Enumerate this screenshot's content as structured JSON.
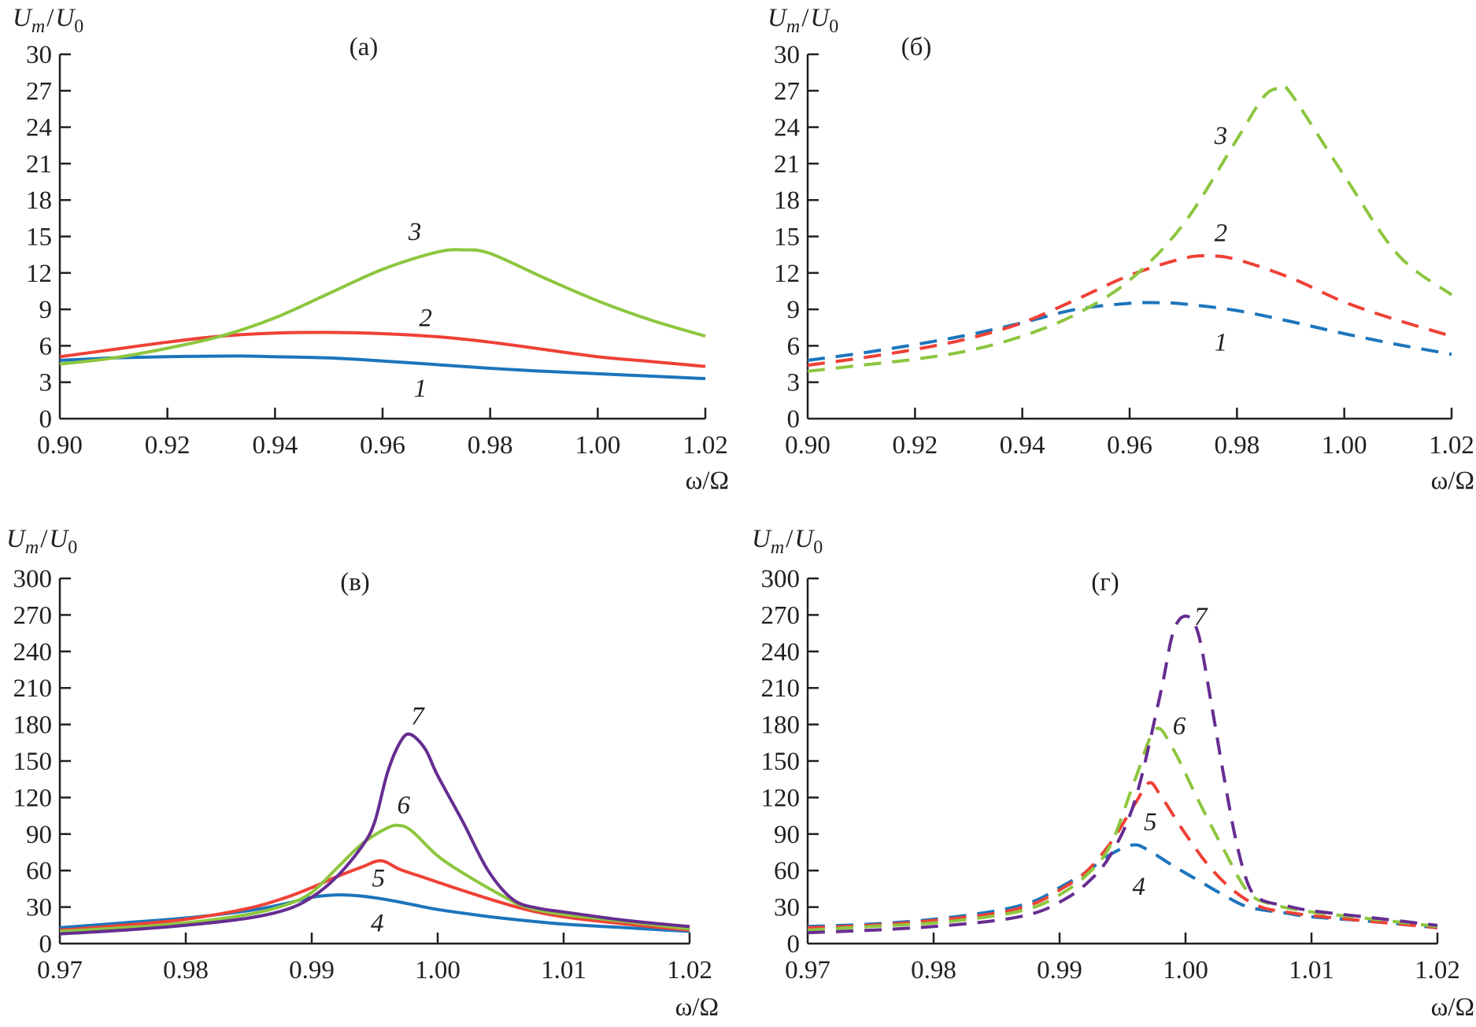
{
  "chart_data": [
    {
      "type": "line",
      "panel_label": "(а)",
      "ylabel": "U_m/U_0",
      "xlabel": "ω/Ω",
      "xlim": [
        0.9,
        1.02
      ],
      "ylim": [
        0,
        30
      ],
      "xticks": [
        "0.90",
        "0.92",
        "0.94",
        "0.96",
        "0.98",
        "1.00",
        "1.02"
      ],
      "yticks": [
        "0",
        "3",
        "6",
        "9",
        "12",
        "15",
        "18",
        "21",
        "24",
        "27",
        "30"
      ],
      "line_style": "solid",
      "grid": false,
      "series": [
        {
          "name": "1",
          "color": "#1c75bc",
          "x": [
            0.9,
            0.91,
            0.92,
            0.93,
            0.935,
            0.94,
            0.95,
            0.96,
            0.97,
            0.98,
            0.99,
            1.0,
            1.01,
            1.02
          ],
          "y": [
            4.8,
            5.0,
            5.1,
            5.15,
            5.15,
            5.1,
            5.0,
            4.75,
            4.45,
            4.15,
            3.9,
            3.7,
            3.5,
            3.3
          ],
          "label_pos": [
            0.967,
            1.8
          ]
        },
        {
          "name": "2",
          "color": "#ef4136",
          "x": [
            0.9,
            0.91,
            0.92,
            0.93,
            0.94,
            0.95,
            0.96,
            0.97,
            0.98,
            0.99,
            1.0,
            1.01,
            1.02
          ],
          "y": [
            5.1,
            5.7,
            6.3,
            6.8,
            7.05,
            7.1,
            7.0,
            6.75,
            6.3,
            5.7,
            5.1,
            4.7,
            4.3
          ],
          "label_pos": [
            0.968,
            7.6
          ]
        },
        {
          "name": "3",
          "color": "#8dc63f",
          "x": [
            0.9,
            0.91,
            0.92,
            0.93,
            0.94,
            0.95,
            0.96,
            0.97,
            0.975,
            0.98,
            0.99,
            1.0,
            1.01,
            1.02
          ],
          "y": [
            4.5,
            5.0,
            5.8,
            6.8,
            8.3,
            10.3,
            12.3,
            13.7,
            13.9,
            13.6,
            11.6,
            9.7,
            8.1,
            6.8
          ],
          "label_pos": [
            0.966,
            14.7
          ]
        }
      ]
    },
    {
      "type": "line",
      "panel_label": "(б)",
      "ylabel": "U_m/U_0",
      "xlabel": "ω/Ω",
      "xlim": [
        0.9,
        1.02
      ],
      "ylim": [
        0,
        30
      ],
      "xticks": [
        "0.90",
        "0.92",
        "0.94",
        "0.96",
        "0.98",
        "1.00",
        "1.02"
      ],
      "yticks": [
        "0",
        "3",
        "6",
        "9",
        "12",
        "15",
        "18",
        "21",
        "24",
        "27",
        "30"
      ],
      "line_style": "dashed",
      "grid": false,
      "series": [
        {
          "name": "1",
          "color": "#1c75bc",
          "x": [
            0.9,
            0.91,
            0.92,
            0.93,
            0.94,
            0.95,
            0.96,
            0.965,
            0.97,
            0.98,
            0.99,
            1.0,
            1.01,
            1.02
          ],
          "y": [
            4.8,
            5.4,
            6.1,
            6.9,
            7.9,
            9.0,
            9.5,
            9.55,
            9.45,
            8.9,
            8.0,
            7.0,
            6.1,
            5.3
          ],
          "label_pos": [
            0.977,
            5.6
          ]
        },
        {
          "name": "2",
          "color": "#ef4136",
          "x": [
            0.9,
            0.91,
            0.92,
            0.93,
            0.94,
            0.95,
            0.96,
            0.97,
            0.975,
            0.98,
            0.99,
            1.0,
            1.01,
            1.02
          ],
          "y": [
            4.4,
            5.0,
            5.7,
            6.6,
            7.9,
            9.8,
            11.8,
            13.2,
            13.4,
            13.1,
            11.6,
            9.6,
            8.1,
            6.8
          ],
          "label_pos": [
            0.977,
            14.6
          ]
        },
        {
          "name": "3",
          "color": "#8dc63f",
          "x": [
            0.9,
            0.91,
            0.92,
            0.93,
            0.94,
            0.95,
            0.96,
            0.97,
            0.98,
            0.985,
            0.988,
            0.99,
            1.0,
            1.01,
            1.02
          ],
          "y": [
            3.9,
            4.4,
            4.9,
            5.6,
            6.8,
            8.6,
            11.4,
            16.0,
            23.0,
            26.5,
            27.2,
            26.8,
            20.0,
            13.5,
            10.2
          ],
          "label_pos": [
            0.977,
            22.6
          ]
        }
      ]
    },
    {
      "type": "line",
      "panel_label": "(в)",
      "ylabel": "U_m/U_0",
      "xlabel": "ω/Ω",
      "xlim": [
        0.97,
        1.02
      ],
      "ylim": [
        0,
        300
      ],
      "xticks": [
        "0.97",
        "0.98",
        "0.99",
        "1.00",
        "1.01",
        "1.02"
      ],
      "yticks": [
        "0",
        "30",
        "60",
        "90",
        "120",
        "150",
        "180",
        "210",
        "240",
        "270",
        "300"
      ],
      "line_style": "solid",
      "grid": false,
      "series": [
        {
          "name": "4",
          "color": "#1c75bc",
          "x": [
            0.97,
            0.975,
            0.98,
            0.985,
            0.988,
            0.99,
            0.992,
            0.994,
            0.996,
            0.998,
            1.0,
            1.002,
            1.005,
            1.01,
            1.015,
            1.02
          ],
          "y": [
            13,
            17,
            21,
            27,
            33,
            38,
            40,
            39,
            36,
            32,
            28,
            25,
            21,
            16,
            13,
            10
          ],
          "label_pos": [
            0.9952,
            10
          ]
        },
        {
          "name": "5",
          "color": "#ef4136",
          "x": [
            0.97,
            0.975,
            0.98,
            0.985,
            0.988,
            0.99,
            0.992,
            0.994,
            0.9955,
            0.997,
            0.999,
            1.001,
            1.004,
            1.007,
            1.01,
            1.015,
            1.02
          ],
          "y": [
            11,
            15,
            20,
            29,
            38,
            46,
            55,
            63,
            68,
            61,
            54,
            47,
            37,
            28,
            22,
            16,
            11
          ],
          "label_pos": [
            0.9953,
            47
          ]
        },
        {
          "name": "6",
          "color": "#8dc63f",
          "x": [
            0.97,
            0.975,
            0.98,
            0.985,
            0.988,
            0.99,
            0.992,
            0.994,
            0.996,
            0.997,
            0.998,
            1.0,
            1.002,
            1.005,
            1.007,
            1.01,
            1.015,
            1.02
          ],
          "y": [
            10,
            13,
            17,
            24,
            32,
            42,
            62,
            82,
            95,
            97,
            92,
            72,
            58,
            40,
            30,
            24,
            18,
            12
          ],
          "label_pos": [
            0.9973,
            107
          ]
        },
        {
          "name": "7",
          "color": "#662d91",
          "x": [
            0.97,
            0.975,
            0.98,
            0.985,
            0.988,
            0.99,
            0.992,
            0.994,
            0.995,
            0.996,
            0.997,
            0.9978,
            0.999,
            1.0,
            1.002,
            1.004,
            1.006,
            1.008,
            1.01,
            1.015,
            1.02
          ],
          "y": [
            8,
            11,
            15,
            21,
            28,
            38,
            55,
            80,
            100,
            140,
            165,
            172,
            160,
            138,
            100,
            60,
            36,
            29,
            26,
            19,
            14
          ],
          "label_pos": [
            0.9984,
            180
          ]
        }
      ]
    },
    {
      "type": "line",
      "panel_label": "(г)",
      "ylabel": "U_m/U_0",
      "xlabel": "ω/Ω",
      "xlim": [
        0.97,
        1.02
      ],
      "ylim": [
        0,
        300
      ],
      "xticks": [
        "0.97",
        "0.98",
        "0.99",
        "1.00",
        "1.01",
        "1.02"
      ],
      "yticks": [
        "0",
        "30",
        "60",
        "90",
        "120",
        "150",
        "180",
        "210",
        "240",
        "270",
        "300"
      ],
      "line_style": "dashed",
      "grid": false,
      "series": [
        {
          "name": "4",
          "color": "#1c75bc",
          "x": [
            0.97,
            0.975,
            0.98,
            0.985,
            0.988,
            0.99,
            0.992,
            0.994,
            0.9958,
            0.997,
            0.999,
            1.001,
            1.003,
            1.005,
            1.008,
            1.01,
            1.015,
            1.02
          ],
          "y": [
            14,
            16,
            20,
            27,
            35,
            46,
            58,
            73,
            81,
            77,
            64,
            52,
            40,
            30,
            25,
            22,
            18,
            13
          ],
          "label_pos": [
            0.9963,
            40
          ]
        },
        {
          "name": "5",
          "color": "#ef4136",
          "x": [
            0.97,
            0.975,
            0.98,
            0.985,
            0.988,
            0.99,
            0.992,
            0.994,
            0.996,
            0.9971,
            0.998,
            1.0,
            1.002,
            1.004,
            1.006,
            1.008,
            1.01,
            1.015,
            1.02
          ],
          "y": [
            13,
            15,
            19,
            25,
            33,
            44,
            58,
            82,
            115,
            132,
            122,
            90,
            62,
            42,
            30,
            26,
            23,
            18,
            13
          ],
          "label_pos": [
            0.9972,
            93
          ]
        },
        {
          "name": "6",
          "color": "#8dc63f",
          "x": [
            0.97,
            0.975,
            0.98,
            0.985,
            0.988,
            0.99,
            0.992,
            0.994,
            0.996,
            0.9976,
            0.999,
            1.001,
            1.003,
            1.005,
            1.007,
            1.01,
            1.015,
            1.02
          ],
          "y": [
            11,
            14,
            17,
            23,
            30,
            40,
            55,
            80,
            135,
            176,
            160,
            118,
            78,
            42,
            32,
            26,
            20,
            14
          ],
          "label_pos": [
            0.9995,
            172
          ]
        },
        {
          "name": "7",
          "color": "#662d91",
          "x": [
            0.97,
            0.975,
            0.98,
            0.985,
            0.988,
            0.99,
            0.992,
            0.994,
            0.996,
            0.998,
            0.999,
            1.0,
            1.001,
            1.002,
            1.003,
            1.004,
            1.005,
            1.006,
            1.008,
            1.01,
            1.015,
            1.02
          ],
          "y": [
            9,
            11,
            14,
            19,
            25,
            34,
            48,
            72,
            118,
            205,
            255,
            269,
            255,
            200,
            140,
            85,
            48,
            36,
            31,
            27,
            21,
            15
          ],
          "label_pos": [
            1.0012,
            262
          ]
        }
      ]
    }
  ]
}
